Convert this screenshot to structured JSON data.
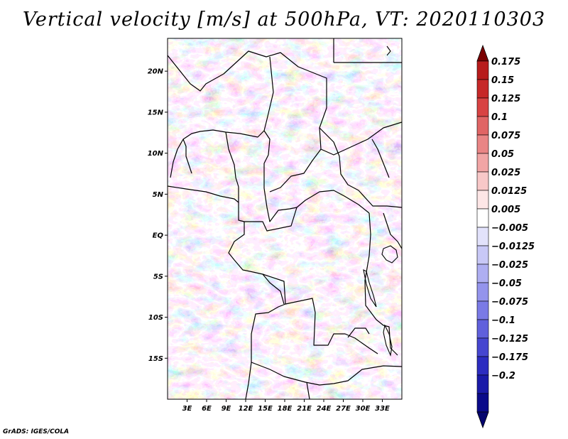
{
  "title": "Vertical velocity [m/s] at 500hPa, VT: 2020110303",
  "footer": "GrADS: IGES/COLA",
  "map": {
    "lon_range": [
      0,
      36
    ],
    "lat_range": [
      -20,
      24
    ],
    "lat_ticks": [
      {
        "value": 20,
        "label": "20N"
      },
      {
        "value": 15,
        "label": "15N"
      },
      {
        "value": 10,
        "label": "10N"
      },
      {
        "value": 5,
        "label": "5N"
      },
      {
        "value": 0,
        "label": "EQ"
      },
      {
        "value": -5,
        "label": "5S"
      },
      {
        "value": -10,
        "label": "10S"
      },
      {
        "value": -15,
        "label": "15S"
      }
    ],
    "lon_ticks": [
      {
        "value": 3,
        "label": "3E"
      },
      {
        "value": 6,
        "label": "6E"
      },
      {
        "value": 9,
        "label": "9E"
      },
      {
        "value": 12,
        "label": "12E"
      },
      {
        "value": 15,
        "label": "15E"
      },
      {
        "value": 18,
        "label": "18E"
      },
      {
        "value": 21,
        "label": "21E"
      },
      {
        "value": 24,
        "label": "24E"
      },
      {
        "value": 27,
        "label": "27E"
      },
      {
        "value": 30,
        "label": "30E"
      },
      {
        "value": 33,
        "label": "33E"
      }
    ]
  },
  "colorbar": {
    "colors": [
      "#7a0000",
      "#b71c1c",
      "#c62828",
      "#d84343",
      "#e06565",
      "#e98585",
      "#f1a5a5",
      "#f8c8c8",
      "#fde6e6",
      "#ffffff",
      "#e2e2fb",
      "#c8c8f6",
      "#aeaef1",
      "#9494ec",
      "#7a7ae6",
      "#6060dc",
      "#4646d0",
      "#2c2cc0",
      "#1a1aa8",
      "#0a0a8a",
      "#05056e"
    ],
    "labels": [
      "0.175",
      "0.15",
      "0.125",
      "0.1",
      "0.075",
      "0.05",
      "0.025",
      "0.0125",
      "0.005",
      "−0.005",
      "−0.0125",
      "−0.025",
      "−0.05",
      "−0.075",
      "−0.1",
      "−0.125",
      "−0.175",
      "−0.2"
    ]
  }
}
